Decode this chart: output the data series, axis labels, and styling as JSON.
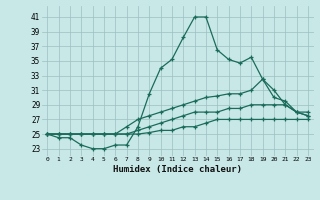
{
  "xlabel": "Humidex (Indice chaleur)",
  "background_color": "#c8e8e8",
  "grid_color": "#9dbfbf",
  "line_color": "#1a6b5a",
  "x_ticks": [
    0,
    1,
    2,
    3,
    4,
    5,
    6,
    7,
    8,
    9,
    10,
    11,
    12,
    13,
    14,
    15,
    16,
    17,
    18,
    19,
    20,
    21,
    22,
    23
  ],
  "y_ticks": [
    23,
    25,
    27,
    29,
    31,
    33,
    35,
    37,
    39,
    41
  ],
  "xlim": [
    -0.5,
    23.5
  ],
  "ylim": [
    22.0,
    42.5
  ],
  "lines": [
    {
      "x": [
        0,
        1,
        2,
        3,
        4,
        5,
        6,
        7,
        8,
        9,
        10,
        11,
        12,
        13,
        14,
        15,
        16,
        17,
        18,
        19,
        20,
        21,
        22,
        23
      ],
      "y": [
        25,
        24.5,
        24.5,
        23.5,
        23,
        23,
        23.5,
        23.5,
        26,
        30.5,
        34,
        35.2,
        38.2,
        41,
        41,
        36.5,
        35.2,
        34.7,
        35.5,
        32.5,
        31,
        29,
        28,
        27.5
      ]
    },
    {
      "x": [
        0,
        1,
        2,
        3,
        4,
        5,
        6,
        7,
        8,
        9,
        10,
        11,
        12,
        13,
        14,
        15,
        16,
        17,
        18,
        19,
        20,
        21,
        22,
        23
      ],
      "y": [
        25,
        25,
        25,
        25,
        25,
        25,
        25,
        26,
        27,
        27.5,
        28,
        28.5,
        29,
        29.5,
        30,
        30.2,
        30.5,
        30.5,
        31,
        32.5,
        30,
        29.5,
        28,
        28
      ]
    },
    {
      "x": [
        0,
        1,
        2,
        3,
        4,
        5,
        6,
        7,
        8,
        9,
        10,
        11,
        12,
        13,
        14,
        15,
        16,
        17,
        18,
        19,
        20,
        21,
        22,
        23
      ],
      "y": [
        25,
        25,
        25,
        25,
        25,
        25,
        25,
        25,
        25.5,
        26,
        26.5,
        27,
        27.5,
        28,
        28,
        28,
        28.5,
        28.5,
        29,
        29,
        29,
        29,
        28,
        27.5
      ]
    },
    {
      "x": [
        0,
        1,
        2,
        3,
        4,
        5,
        6,
        7,
        8,
        9,
        10,
        11,
        12,
        13,
        14,
        15,
        16,
        17,
        18,
        19,
        20,
        21,
        22,
        23
      ],
      "y": [
        25,
        25,
        25,
        25,
        25,
        25,
        25,
        25,
        25,
        25.2,
        25.5,
        25.5,
        26,
        26,
        26.5,
        27,
        27,
        27,
        27,
        27,
        27,
        27,
        27,
        27
      ]
    }
  ]
}
